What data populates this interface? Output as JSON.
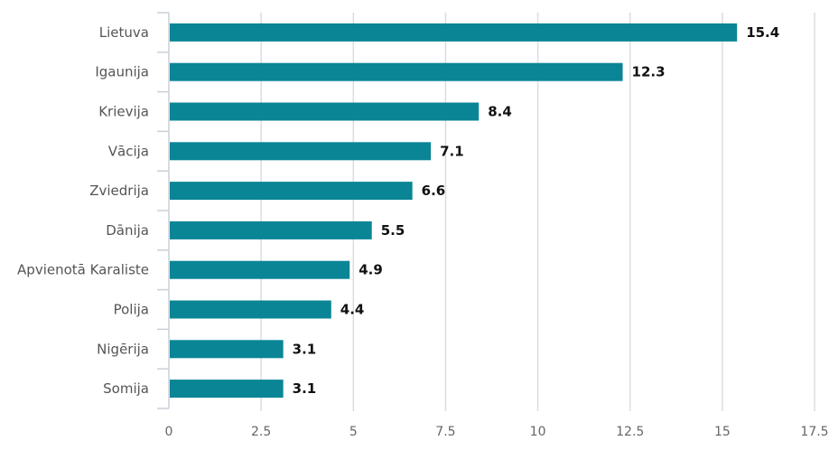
{
  "chart_data": {
    "type": "bar",
    "orientation": "horizontal",
    "categories": [
      "Lietuva",
      "Igaunija",
      "Krievija",
      "Vācija",
      "Zviedrija",
      "Dānija",
      "Apvienotā Karaliste",
      "Polija",
      "Nigērija",
      "Somija"
    ],
    "values": [
      15.4,
      12.3,
      8.4,
      7.1,
      6.6,
      5.5,
      4.9,
      4.4,
      3.1,
      3.1
    ],
    "value_labels": [
      "15.4",
      "12.3",
      "8.4",
      "7.1",
      "6.6",
      "5.5",
      "4.9",
      "4.4",
      "3.1",
      "3.1"
    ],
    "xlim": [
      0,
      17.5
    ],
    "x_ticks": [
      0,
      2.5,
      5,
      7.5,
      10,
      12.5,
      15,
      17.5
    ],
    "x_tick_labels": [
      "0",
      "2.5",
      "5",
      "7.5",
      "10",
      "12.5",
      "15",
      "17.5"
    ],
    "grid": true,
    "bar_color": "#0a8596",
    "title": "",
    "xlabel": "",
    "ylabel": ""
  }
}
